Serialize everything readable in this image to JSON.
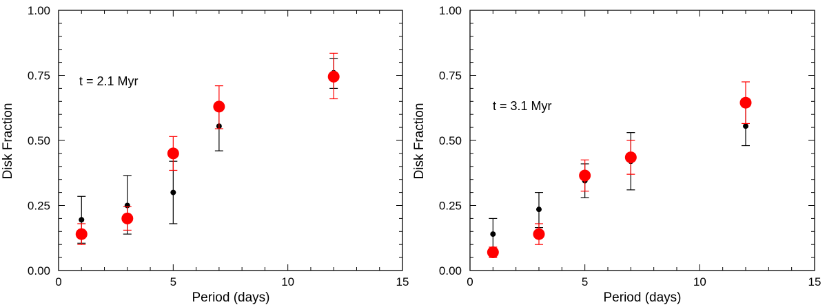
{
  "chart_data": [
    {
      "type": "scatter",
      "title": "",
      "xlabel": "Period (days)",
      "ylabel": "Disk Fraction",
      "xlim": [
        0,
        15
      ],
      "ylim": [
        0,
        1
      ],
      "xticks": [
        "0",
        "5",
        "10",
        "15"
      ],
      "yticks": [
        "0.00",
        "0.25",
        "0.50",
        "0.75",
        "1.00"
      ],
      "grid": false,
      "annotation": "t =   2.1 Myr",
      "series": [
        {
          "color": "#000000",
          "marker": "small-dot",
          "points": [
            {
              "x": 1,
              "y": 0.195,
              "ylo": 0.105,
              "yhi": 0.285
            },
            {
              "x": 3,
              "y": 0.25,
              "ylo": 0.14,
              "yhi": 0.365
            },
            {
              "x": 5,
              "y": 0.3,
              "ylo": 0.18,
              "yhi": 0.42
            },
            {
              "x": 7,
              "y": 0.555,
              "ylo": 0.46,
              "yhi": 0.645
            },
            {
              "x": 12,
              "y": 0.76,
              "ylo": 0.7,
              "yhi": 0.815
            }
          ]
        },
        {
          "color": "#ff0000",
          "marker": "large-dot",
          "points": [
            {
              "x": 1,
              "y": 0.14,
              "ylo": 0.1,
              "yhi": 0.18
            },
            {
              "x": 3,
              "y": 0.2,
              "ylo": 0.155,
              "yhi": 0.245
            },
            {
              "x": 5,
              "y": 0.45,
              "ylo": 0.385,
              "yhi": 0.515
            },
            {
              "x": 7,
              "y": 0.63,
              "ylo": 0.545,
              "yhi": 0.71
            },
            {
              "x": 12,
              "y": 0.745,
              "ylo": 0.66,
              "yhi": 0.835
            }
          ]
        }
      ]
    },
    {
      "type": "scatter",
      "title": "",
      "xlabel": "Period (days)",
      "ylabel": "Disk Fraction",
      "xlim": [
        0,
        15
      ],
      "ylim": [
        0,
        1
      ],
      "xticks": [
        "0",
        "5",
        "10",
        "15"
      ],
      "yticks": [
        "0.00",
        "0.25",
        "0.50",
        "0.75",
        "1.00"
      ],
      "grid": false,
      "annotation": "t =   3.1 Myr",
      "series": [
        {
          "color": "#000000",
          "marker": "small-dot",
          "points": [
            {
              "x": 1,
              "y": 0.14,
              "ylo": 0.08,
              "yhi": 0.2
            },
            {
              "x": 3,
              "y": 0.235,
              "ylo": 0.165,
              "yhi": 0.3
            },
            {
              "x": 5,
              "y": 0.345,
              "ylo": 0.28,
              "yhi": 0.41
            },
            {
              "x": 7,
              "y": 0.42,
              "ylo": 0.31,
              "yhi": 0.53
            },
            {
              "x": 12,
              "y": 0.555,
              "ylo": 0.48,
              "yhi": 0.64
            }
          ]
        },
        {
          "color": "#ff0000",
          "marker": "large-dot",
          "points": [
            {
              "x": 1,
              "y": 0.07,
              "ylo": 0.05,
              "yhi": 0.09
            },
            {
              "x": 3,
              "y": 0.14,
              "ylo": 0.1,
              "yhi": 0.18
            },
            {
              "x": 5,
              "y": 0.365,
              "ylo": 0.305,
              "yhi": 0.425
            },
            {
              "x": 7,
              "y": 0.435,
              "ylo": 0.37,
              "yhi": 0.5
            },
            {
              "x": 12,
              "y": 0.645,
              "ylo": 0.565,
              "yhi": 0.725
            }
          ]
        }
      ]
    }
  ]
}
